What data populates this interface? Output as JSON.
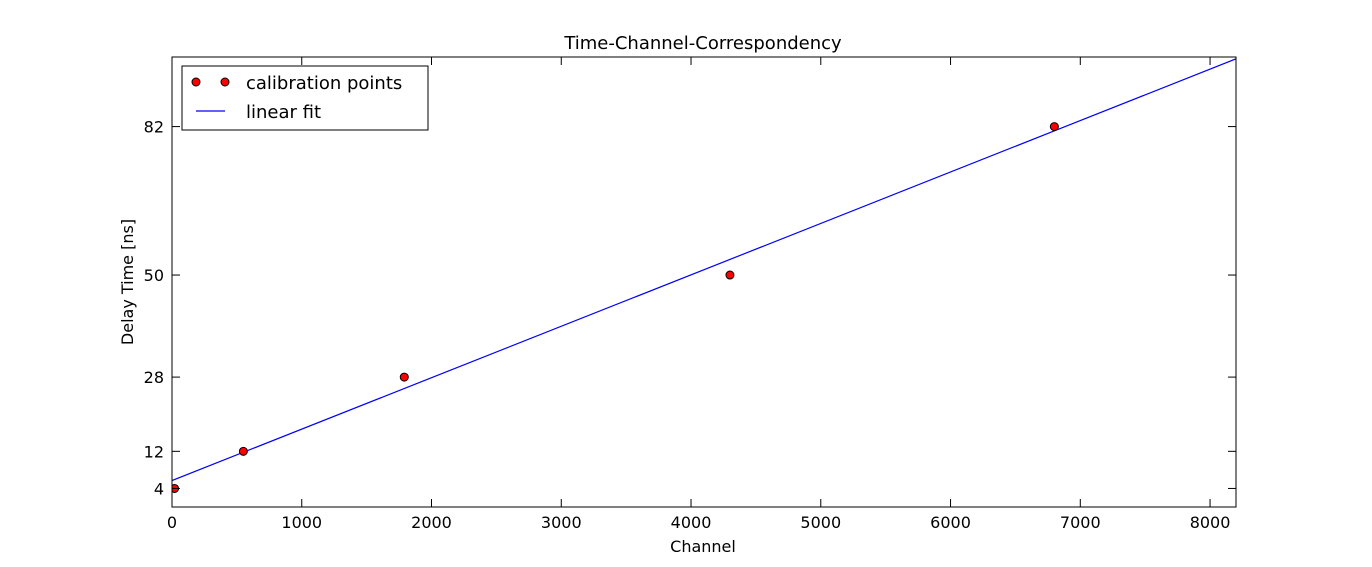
{
  "chart_data": {
    "type": "scatter",
    "title": "Time-Channel-Correspondency",
    "xlabel": "Channel",
    "ylabel": "Delay Time [ns]",
    "xlim": [
      0,
      8200
    ],
    "ylim": [
      0,
      97
    ],
    "x_ticks": [
      0,
      1000,
      2000,
      3000,
      4000,
      5000,
      6000,
      7000,
      8000
    ],
    "y_ticks": [
      4,
      12,
      28,
      50,
      82
    ],
    "grid": false,
    "legend_position": "upper left",
    "series": [
      {
        "name": "calibration points",
        "kind": "points",
        "color": "#ff0000",
        "x": [
          20,
          550,
          1790,
          4300,
          6800
        ],
        "y": [
          4,
          12,
          28,
          50,
          82
        ]
      },
      {
        "name": "linear fit",
        "kind": "line",
        "color": "#0000ff",
        "x": [
          0,
          8200
        ],
        "y": [
          5.7,
          96.6
        ]
      }
    ]
  }
}
